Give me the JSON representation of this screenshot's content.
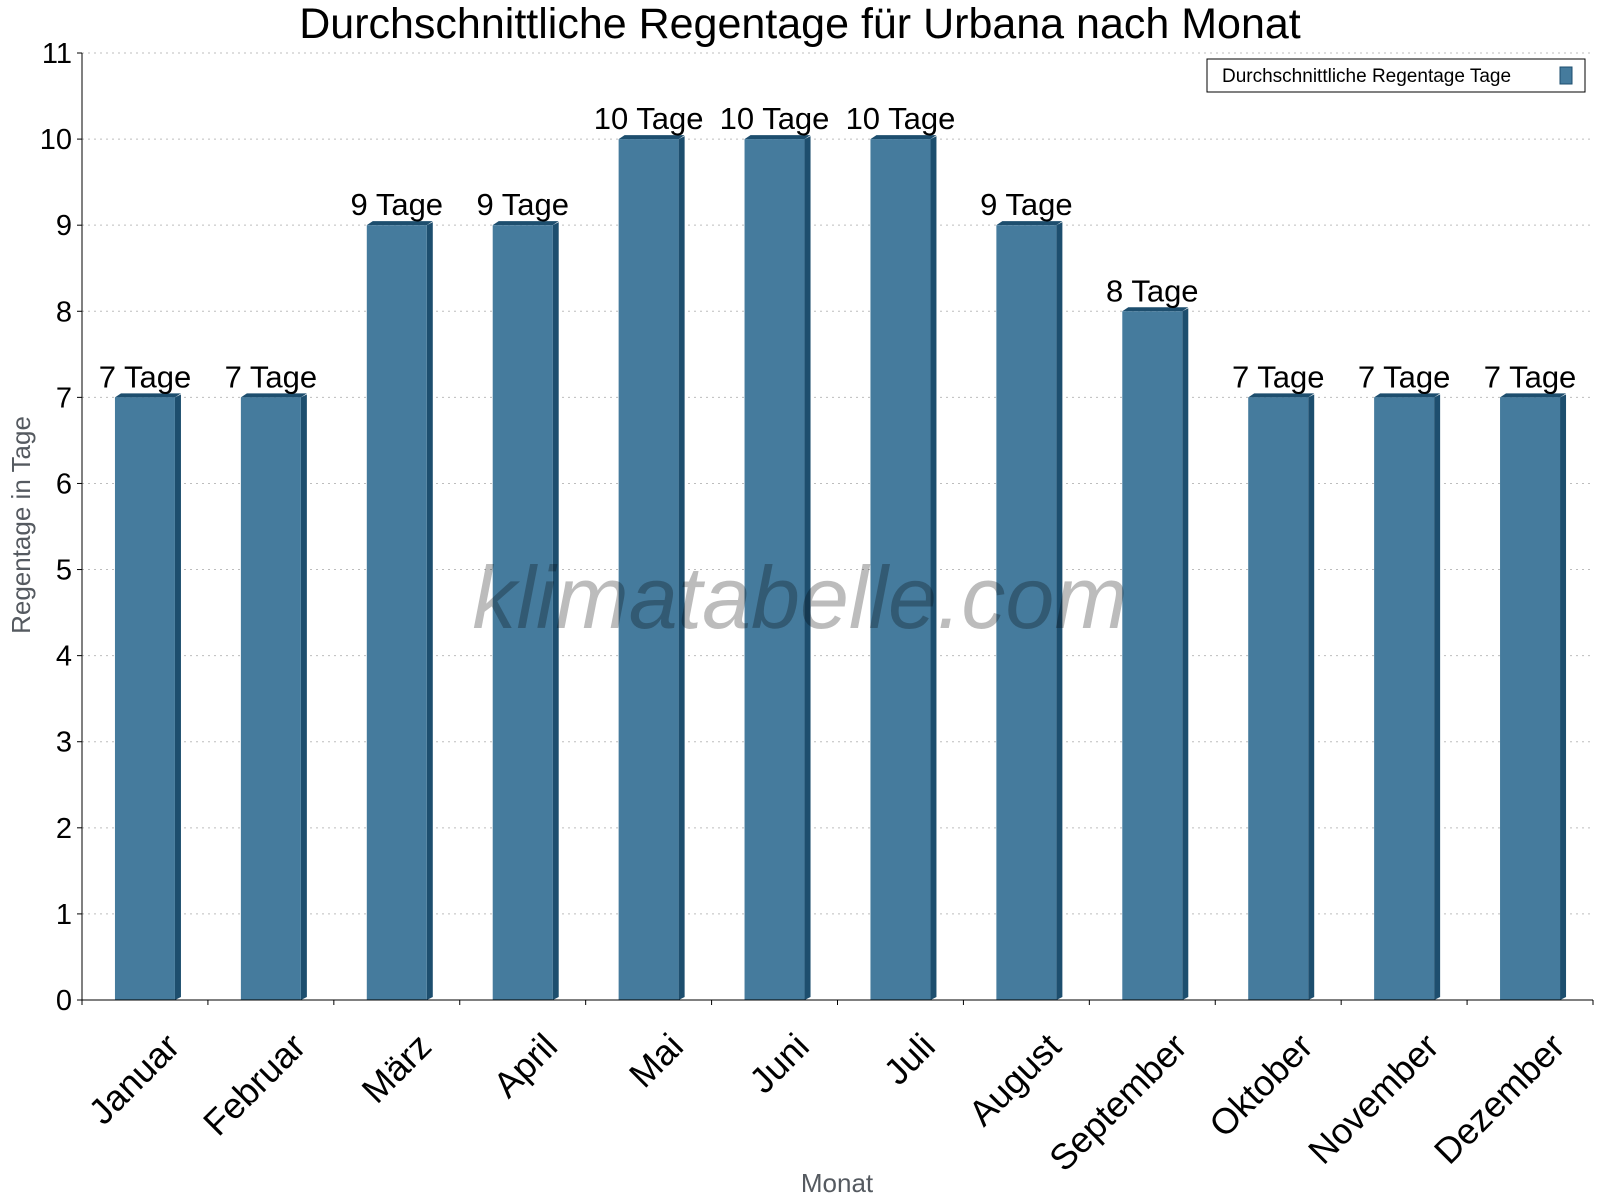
{
  "chart_data": {
    "type": "bar",
    "title": "Durchschnittliche Regentage für Urbana nach Monat",
    "xlabel": "Monat",
    "ylabel": "Regentage in Tage",
    "ylim": [
      0,
      11
    ],
    "yticks": [
      0,
      1,
      2,
      3,
      4,
      5,
      6,
      7,
      8,
      9,
      10,
      11
    ],
    "grid": true,
    "legend_position": "top-right",
    "categories": [
      "Januar",
      "Februar",
      "März",
      "April",
      "Mai",
      "Juni",
      "Juli",
      "August",
      "September",
      "Oktober",
      "November",
      "Dezember"
    ],
    "series": [
      {
        "name": "Durchschnittliche Regentage Tage",
        "values": [
          7,
          7,
          9,
          9,
          10,
          10,
          10,
          9,
          8,
          7,
          7,
          7
        ],
        "labels": [
          "7 Tage",
          "7 Tage",
          "9 Tage",
          "9 Tage",
          "10 Tage",
          "10 Tage",
          "10 Tage",
          "9 Tage",
          "8 Tage",
          "7 Tage",
          "7 Tage",
          "7 Tage"
        ],
        "color": "#457b9d",
        "side_color": "#1d4e6e"
      }
    ]
  },
  "watermark": "klimatabelle.com"
}
